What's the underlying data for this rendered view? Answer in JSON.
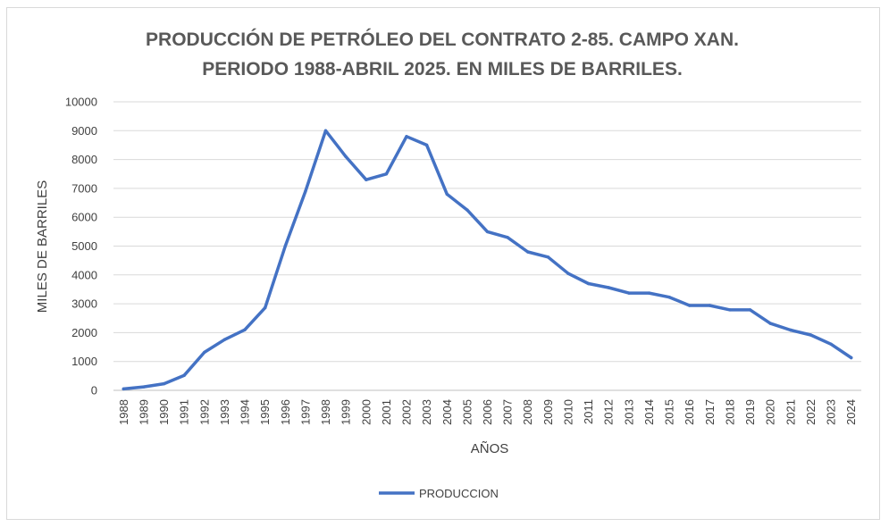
{
  "chart_data": {
    "type": "line",
    "title_lines": [
      "PRODUCCIÓN DE PETRÓLEO DEL CONTRATO 2-85. CAMPO XAN.",
      "PERIODO 1988-ABRIL 2025. EN MILES DE BARRILES."
    ],
    "xlabel": "AÑOS",
    "ylabel": "MILES DE BARRILES",
    "ylim": [
      0,
      10000
    ],
    "yticks": [
      "0",
      "1000",
      "2000",
      "3000",
      "4000",
      "5000",
      "6000",
      "7000",
      "8000",
      "9000",
      "10000"
    ],
    "categories": [
      "1988",
      "1989",
      "1990",
      "1991",
      "1992",
      "1993",
      "1994",
      "1995",
      "1996",
      "1997",
      "1998",
      "1999",
      "2000",
      "2001",
      "2002",
      "2003",
      "2004",
      "2005",
      "2006",
      "2007",
      "2008",
      "2009",
      "2010",
      "2011",
      "2012",
      "2013",
      "2014",
      "2015",
      "2016",
      "2017",
      "2018",
      "2019",
      "2020",
      "2021",
      "2022",
      "2023",
      "2024"
    ],
    "series": [
      {
        "name": "PRODUCCION",
        "color": "#4472c4",
        "values": [
          50,
          120,
          230,
          520,
          1320,
          1760,
          2100,
          2860,
          5000,
          6900,
          9000,
          8100,
          7300,
          7500,
          8800,
          8500,
          6800,
          6250,
          5500,
          5300,
          4800,
          4620,
          4050,
          3700,
          3560,
          3370,
          3370,
          3230,
          2940,
          2940,
          2790,
          2790,
          2320,
          2090,
          1920,
          1600,
          1130
        ]
      }
    ],
    "grid": "horizontal",
    "legend_position": "bottom"
  }
}
